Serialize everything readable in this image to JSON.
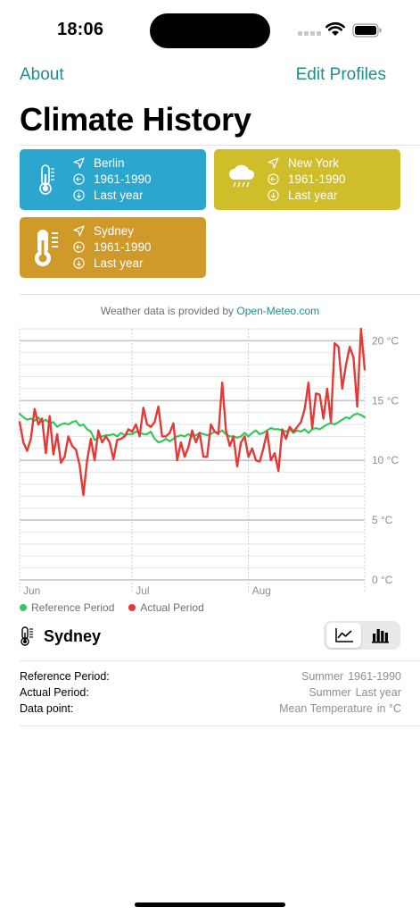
{
  "status_bar": {
    "time": "18:06"
  },
  "nav": {
    "about": "About",
    "edit_profiles": "Edit Profiles"
  },
  "title": "Climate History",
  "profiles": [
    {
      "name": "Berlin",
      "reference": "1961-1990",
      "actual": "Last year",
      "color": "#2aa6cf",
      "icon": "thermometer-icon"
    },
    {
      "name": "New York",
      "reference": "1961-1990",
      "actual": "Last year",
      "color": "#cfbd2a",
      "icon": "cloud-rain-icon"
    },
    {
      "name": "Sydney",
      "reference": "1961-1990",
      "actual": "Last year",
      "color": "#cf9a2a",
      "icon": "thermometer-icon"
    }
  ],
  "attribution": {
    "prefix": "Weather data is provided by",
    "link": "Open-Meteo.com"
  },
  "chart_data": {
    "type": "line",
    "x_axis": {
      "labels": [
        "Jun",
        "Jul",
        "Aug"
      ],
      "unit": "day of summer",
      "range": [
        0,
        92
      ],
      "label_positions": [
        0,
        30,
        61
      ]
    },
    "y_axis": {
      "unit": "°C",
      "ticks": [
        "20 °C",
        "15 °C",
        "10 °C",
        "5 °C",
        "0 °C"
      ],
      "tick_values": [
        20,
        15,
        10,
        5,
        0
      ],
      "range": [
        0,
        21
      ],
      "minor_step": 1
    },
    "grid": true,
    "series": [
      {
        "name": "Reference Period",
        "color": "#34c759",
        "values": [
          13.9,
          13.6,
          13.4,
          13.5,
          13.3,
          13.6,
          13.2,
          13.4,
          13.1,
          13.2,
          12.8,
          13.0,
          13.1,
          13.0,
          13.2,
          13.3,
          12.9,
          13.0,
          12.6,
          12.4,
          11.7,
          11.9,
          12.0,
          12.1,
          12.1,
          12.2,
          12.0,
          12.3,
          12.1,
          12.2,
          12.2,
          12.4,
          12.3,
          12.2,
          12.2,
          12.4,
          11.8,
          11.5,
          11.6,
          11.8,
          11.6,
          11.8,
          12.0,
          12.1,
          12.0,
          12.2,
          12.0,
          12.1,
          12.3,
          12.2,
          12.1,
          12.2,
          12.4,
          12.3,
          12.5,
          12.2,
          12.0,
          12.0,
          11.9,
          12.0,
          12.3,
          12.0,
          12.3,
          12.5,
          12.2,
          12.3,
          12.5,
          12.7,
          12.6,
          12.6,
          12.5,
          12.4,
          12.6,
          12.3,
          12.5,
          12.4,
          12.6,
          12.3,
          12.6,
          12.7,
          12.6,
          12.8,
          13.0,
          13.1,
          13.0,
          13.2,
          13.4,
          13.6,
          13.5,
          13.8,
          13.9,
          13.8,
          13.6
        ]
      },
      {
        "name": "Actual Period",
        "color": "#e53935",
        "values": [
          13.2,
          11.5,
          10.8,
          11.8,
          14.3,
          13.0,
          13.5,
          10.6,
          13.7,
          10.5,
          12.2,
          9.8,
          10.3,
          12.0,
          11.2,
          10.9,
          9.6,
          7.1,
          10.0,
          11.8,
          10.0,
          12.5,
          11.5,
          12.0,
          11.5,
          10.1,
          11.7,
          11.8,
          12.0,
          12.6,
          12.4,
          13.0,
          12.0,
          14.4,
          13.0,
          12.8,
          13.2,
          14.5,
          12.0,
          12.0,
          12.3,
          13.1,
          10.0,
          11.5,
          10.3,
          11.1,
          12.5,
          11.5,
          12.3,
          10.3,
          10.3,
          13.0,
          12.4,
          12.2,
          16.5,
          12.5,
          11.2,
          12.0,
          9.5,
          11.5,
          12.0,
          10.3,
          11.0,
          10.0,
          9.9,
          11.0,
          12.4,
          10.0,
          10.6,
          9.1,
          12.6,
          11.8,
          12.8,
          12.4,
          12.8,
          13.2,
          14.3,
          16.5,
          12.7,
          15.6,
          15.5,
          13.5,
          16.0,
          13.2,
          19.8,
          19.5,
          16.0,
          18.0,
          19.5,
          18.6,
          14.5,
          21.0,
          17.6
        ]
      }
    ]
  },
  "legend": {
    "reference": "Reference Period",
    "actual": "Actual Period"
  },
  "selected_profile": {
    "name": "Sydney",
    "icon": "thermometer-icon"
  },
  "view_toggle": {
    "options": [
      "line-chart-icon",
      "bar-chart-icon"
    ],
    "selected": "line-chart-icon"
  },
  "details": [
    {
      "label": "Reference Period:",
      "value_a": "Summer",
      "value_b": "1961-1990"
    },
    {
      "label": "Actual Period:",
      "value_a": "Summer",
      "value_b": "Last year"
    },
    {
      "label": "Data point:",
      "value_a": "Mean Temperature",
      "value_b": "in °C"
    }
  ],
  "colors": {
    "accent": "#1e8f8a",
    "reference_series": "#34c759",
    "actual_series": "#e53935"
  }
}
